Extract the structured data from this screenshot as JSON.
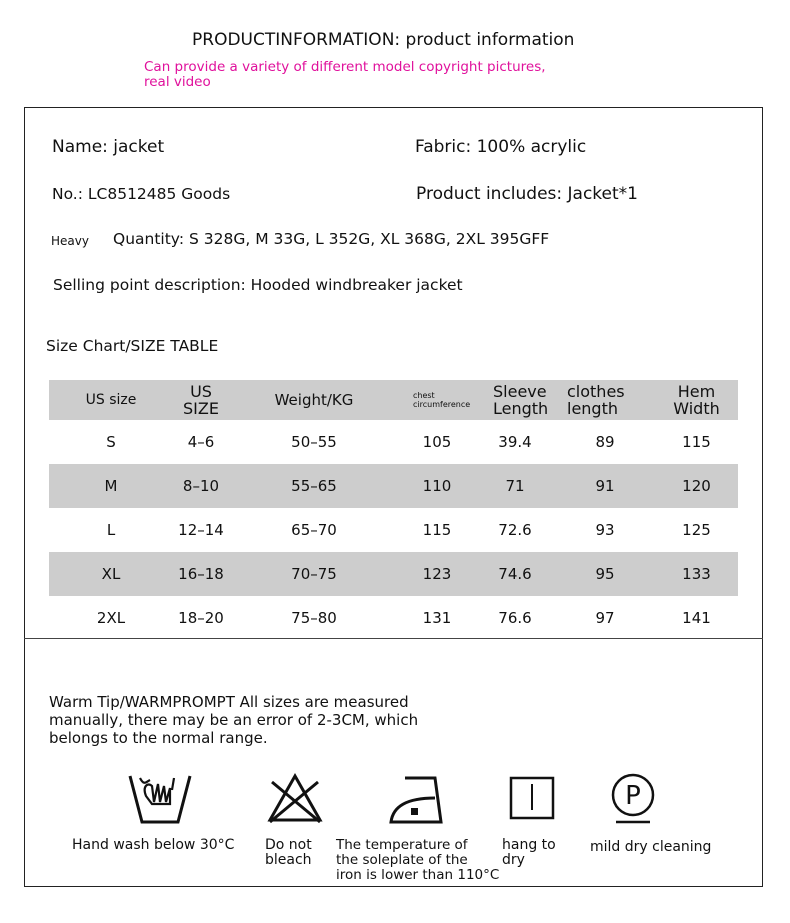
{
  "header": {
    "title": "PRODUCTINFORMATION: product information",
    "note_line1": "Can provide a variety of different model copyright pictures,",
    "note_line2": "real video"
  },
  "info": {
    "name": "Name: jacket",
    "fabric": "Fabric: 100% acrylic",
    "number": "No.: LC8512485 Goods",
    "includes": "Product includes: Jacket*1",
    "heavy": "Heavy",
    "quantity": "Quantity: S 328G, M 33G, L 352G, XL 368G, 2XL 395GFF",
    "selling_point": "Selling point description: Hooded windbreaker jacket"
  },
  "size_chart": {
    "title": "Size Chart/SIZE TABLE",
    "headers": [
      "US size",
      "US SIZE",
      "Weight/KG",
      "chest circumference",
      "Sleeve Length",
      "clothes length",
      "Hem Width"
    ],
    "rows": [
      [
        "S",
        "4–6",
        "50–55",
        "105",
        "39.4",
        "89",
        "115"
      ],
      [
        "M",
        "8–10",
        "55–65",
        "110",
        "71",
        "91",
        "120"
      ],
      [
        "L",
        "12–14",
        "65–70",
        "115",
        "72.6",
        "93",
        "125"
      ],
      [
        "XL",
        "16–18",
        "70–75",
        "123",
        "74.6",
        "95",
        "133"
      ],
      [
        "2XL",
        "18–20",
        "75–80",
        "131",
        "76.6",
        "97",
        "141"
      ]
    ]
  },
  "warm_tip": "Warm Tip/WARMPROMPT All sizes are measured manually, there may be an error of 2-3CM, which belongs to the normal range.",
  "care": [
    {
      "icon": "hand-wash-icon",
      "label": "Hand wash below 30°C"
    },
    {
      "icon": "no-bleach-icon",
      "label": "Do not\nbleach"
    },
    {
      "icon": "iron-low-icon",
      "label": "The temperature of\nthe soleplate of the\niron is lower than 110°C"
    },
    {
      "icon": "hang-dry-icon",
      "label": "hang to\ndry"
    },
    {
      "icon": "dry-clean-p-icon",
      "label": "mild dry cleaning"
    }
  ]
}
